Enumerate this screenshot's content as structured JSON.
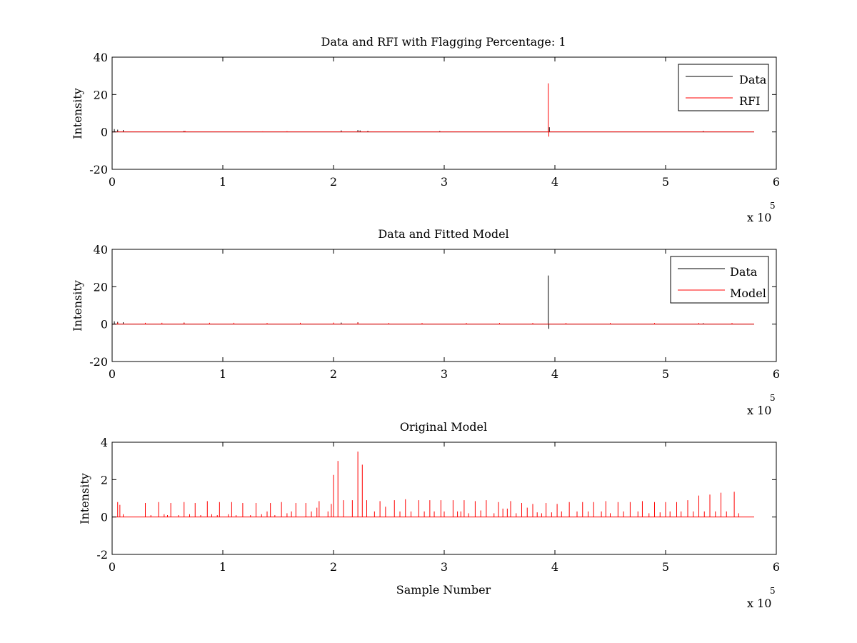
{
  "figure": {
    "background": "#ffffff",
    "colors": {
      "data": "#000000",
      "rfi": "#ff0000",
      "model": "#ff0000"
    }
  },
  "chart_data": [
    {
      "type": "line",
      "title": "Data and RFI with Flagging Percentage: 1",
      "xlabel": "",
      "ylabel": "Intensity",
      "xlim": [
        0,
        6
      ],
      "ylim": [
        -20,
        40
      ],
      "xticks": [
        "0",
        "1",
        "2",
        "3",
        "4",
        "5",
        "6"
      ],
      "yticks": [
        "-20",
        "0",
        "20",
        "40"
      ],
      "x_multiplier": {
        "base": "x 10",
        "exponent": "5"
      },
      "x_end": 5.8,
      "grid": false,
      "legend": {
        "position": "top-right",
        "entries": [
          "Data",
          "RFI"
        ]
      },
      "series": [
        {
          "name": "Data",
          "color": "#000000",
          "baseline": 0,
          "spikes": [
            [
              0.02,
              1.5
            ],
            [
              0.05,
              1.2
            ],
            [
              0.1,
              1.0
            ],
            [
              0.65,
              0.6
            ],
            [
              2.07,
              0.8
            ],
            [
              2.22,
              1.0
            ],
            [
              2.24,
              0.8
            ],
            [
              2.31,
              0.6
            ],
            [
              2.96,
              0.5
            ],
            [
              3.95,
              2.5
            ],
            [
              5.34,
              0.5
            ]
          ]
        },
        {
          "name": "RFI",
          "color": "#ff0000",
          "baseline": 0,
          "spikes": [
            [
              0.66,
              0.5
            ],
            [
              1.36,
              0.3
            ],
            [
              1.58,
              0.4
            ],
            [
              3.94,
              26
            ],
            [
              3.945,
              -2.5
            ]
          ]
        }
      ]
    },
    {
      "type": "line",
      "title": "Data and Fitted Model",
      "xlabel": "",
      "ylabel": "Intensity",
      "xlim": [
        0,
        6
      ],
      "ylim": [
        -20,
        40
      ],
      "xticks": [
        "0",
        "1",
        "2",
        "3",
        "4",
        "5",
        "6"
      ],
      "yticks": [
        "-20",
        "0",
        "20",
        "40"
      ],
      "x_multiplier": {
        "base": "x 10",
        "exponent": "5"
      },
      "x_end": 5.8,
      "grid": false,
      "legend": {
        "position": "top-right",
        "entries": [
          "Data",
          "Model"
        ]
      },
      "series": [
        {
          "name": "Data",
          "color": "#000000",
          "baseline": 0,
          "spikes": [
            [
              0.02,
              1.5
            ],
            [
              0.05,
              1.2
            ],
            [
              0.1,
              1.0
            ],
            [
              0.65,
              0.8
            ],
            [
              2.07,
              0.8
            ],
            [
              2.22,
              1.0
            ],
            [
              3.94,
              26
            ],
            [
              3.945,
              -2.5
            ],
            [
              5.34,
              0.5
            ]
          ]
        },
        {
          "name": "Model",
          "color": "#ff0000",
          "baseline": 0,
          "spikes": [
            [
              0.05,
              0.8
            ],
            [
              0.3,
              0.7
            ],
            [
              0.45,
              0.7
            ],
            [
              0.65,
              0.8
            ],
            [
              0.88,
              0.7
            ],
            [
              1.1,
              0.7
            ],
            [
              1.4,
              0.6
            ],
            [
              1.7,
              0.7
            ],
            [
              2.0,
              0.8
            ],
            [
              2.22,
              0.9
            ],
            [
              2.5,
              0.6
            ],
            [
              2.8,
              0.6
            ],
            [
              3.2,
              0.6
            ],
            [
              3.5,
              0.6
            ],
            [
              3.8,
              0.6
            ],
            [
              4.1,
              0.6
            ],
            [
              4.5,
              0.6
            ],
            [
              4.9,
              0.6
            ],
            [
              5.3,
              0.6
            ],
            [
              5.6,
              0.6
            ]
          ]
        }
      ]
    },
    {
      "type": "line",
      "title": "Original Model",
      "xlabel": "Sample Number",
      "ylabel": "Intensity",
      "xlim": [
        0,
        6
      ],
      "ylim": [
        -2,
        4
      ],
      "xticks": [
        "0",
        "1",
        "2",
        "3",
        "4",
        "5",
        "6"
      ],
      "yticks": [
        "-2",
        "0",
        "2",
        "4"
      ],
      "x_multiplier": {
        "base": "x 10",
        "exponent": "5"
      },
      "x_end": 5.8,
      "grid": false,
      "series": [
        {
          "color": "#ff0000",
          "baseline": 0,
          "spikes": [
            [
              0.05,
              0.8
            ],
            [
              0.07,
              0.65
            ],
            [
              0.1,
              0.15
            ],
            [
              0.3,
              0.75
            ],
            [
              0.35,
              0.1
            ],
            [
              0.42,
              0.8
            ],
            [
              0.47,
              0.15
            ],
            [
              0.5,
              0.1
            ],
            [
              0.53,
              0.75
            ],
            [
              0.6,
              0.1
            ],
            [
              0.65,
              0.8
            ],
            [
              0.7,
              0.15
            ],
            [
              0.75,
              0.75
            ],
            [
              0.8,
              0.1
            ],
            [
              0.86,
              0.85
            ],
            [
              0.9,
              0.15
            ],
            [
              0.95,
              0.1
            ],
            [
              0.97,
              0.8
            ],
            [
              1.05,
              0.15
            ],
            [
              1.08,
              0.8
            ],
            [
              1.12,
              0.1
            ],
            [
              1.18,
              0.75
            ],
            [
              1.25,
              0.1
            ],
            [
              1.3,
              0.75
            ],
            [
              1.35,
              0.15
            ],
            [
              1.4,
              0.3
            ],
            [
              1.43,
              0.75
            ],
            [
              1.47,
              0.1
            ],
            [
              1.53,
              0.8
            ],
            [
              1.58,
              0.2
            ],
            [
              1.62,
              0.3
            ],
            [
              1.66,
              0.75
            ],
            [
              1.75,
              0.75
            ],
            [
              1.8,
              0.3
            ],
            [
              1.85,
              0.5
            ],
            [
              1.87,
              0.85
            ],
            [
              1.95,
              0.3
            ],
            [
              1.98,
              0.7
            ],
            [
              2.0,
              2.25
            ],
            [
              2.04,
              3.0
            ],
            [
              2.09,
              0.9
            ],
            [
              2.17,
              0.9
            ],
            [
              2.22,
              3.5
            ],
            [
              2.26,
              2.8
            ],
            [
              2.3,
              0.9
            ],
            [
              2.37,
              0.3
            ],
            [
              2.42,
              0.85
            ],
            [
              2.47,
              0.55
            ],
            [
              2.55,
              0.9
            ],
            [
              2.6,
              0.3
            ],
            [
              2.65,
              0.95
            ],
            [
              2.7,
              0.3
            ],
            [
              2.77,
              0.9
            ],
            [
              2.82,
              0.3
            ],
            [
              2.87,
              0.9
            ],
            [
              2.91,
              0.3
            ],
            [
              2.97,
              0.9
            ],
            [
              3.0,
              0.3
            ],
            [
              3.08,
              0.9
            ],
            [
              3.12,
              0.3
            ],
            [
              3.15,
              0.3
            ],
            [
              3.18,
              0.9
            ],
            [
              3.22,
              0.2
            ],
            [
              3.28,
              0.85
            ],
            [
              3.33,
              0.35
            ],
            [
              3.38,
              0.9
            ],
            [
              3.45,
              0.2
            ],
            [
              3.49,
              0.8
            ],
            [
              3.53,
              0.45
            ],
            [
              3.57,
              0.45
            ],
            [
              3.6,
              0.85
            ],
            [
              3.65,
              0.2
            ],
            [
              3.7,
              0.75
            ],
            [
              3.75,
              0.5
            ],
            [
              3.8,
              0.7
            ],
            [
              3.84,
              0.25
            ],
            [
              3.88,
              0.2
            ],
            [
              3.92,
              0.75
            ],
            [
              3.97,
              0.25
            ],
            [
              4.02,
              0.7
            ],
            [
              4.06,
              0.3
            ],
            [
              4.13,
              0.8
            ],
            [
              4.2,
              0.3
            ],
            [
              4.25,
              0.8
            ],
            [
              4.3,
              0.3
            ],
            [
              4.35,
              0.8
            ],
            [
              4.42,
              0.3
            ],
            [
              4.46,
              0.85
            ],
            [
              4.5,
              0.2
            ],
            [
              4.57,
              0.8
            ],
            [
              4.62,
              0.3
            ],
            [
              4.68,
              0.8
            ],
            [
              4.75,
              0.3
            ],
            [
              4.79,
              0.85
            ],
            [
              4.85,
              0.2
            ],
            [
              4.9,
              0.8
            ],
            [
              4.95,
              0.25
            ],
            [
              5.0,
              0.8
            ],
            [
              5.04,
              0.3
            ],
            [
              5.1,
              0.8
            ],
            [
              5.14,
              0.3
            ],
            [
              5.2,
              0.9
            ],
            [
              5.25,
              0.3
            ],
            [
              5.3,
              1.15
            ],
            [
              5.35,
              0.3
            ],
            [
              5.4,
              1.2
            ],
            [
              5.45,
              0.3
            ],
            [
              5.5,
              1.3
            ],
            [
              5.55,
              0.3
            ],
            [
              5.62,
              1.35
            ],
            [
              5.66,
              0.2
            ]
          ]
        }
      ]
    }
  ]
}
